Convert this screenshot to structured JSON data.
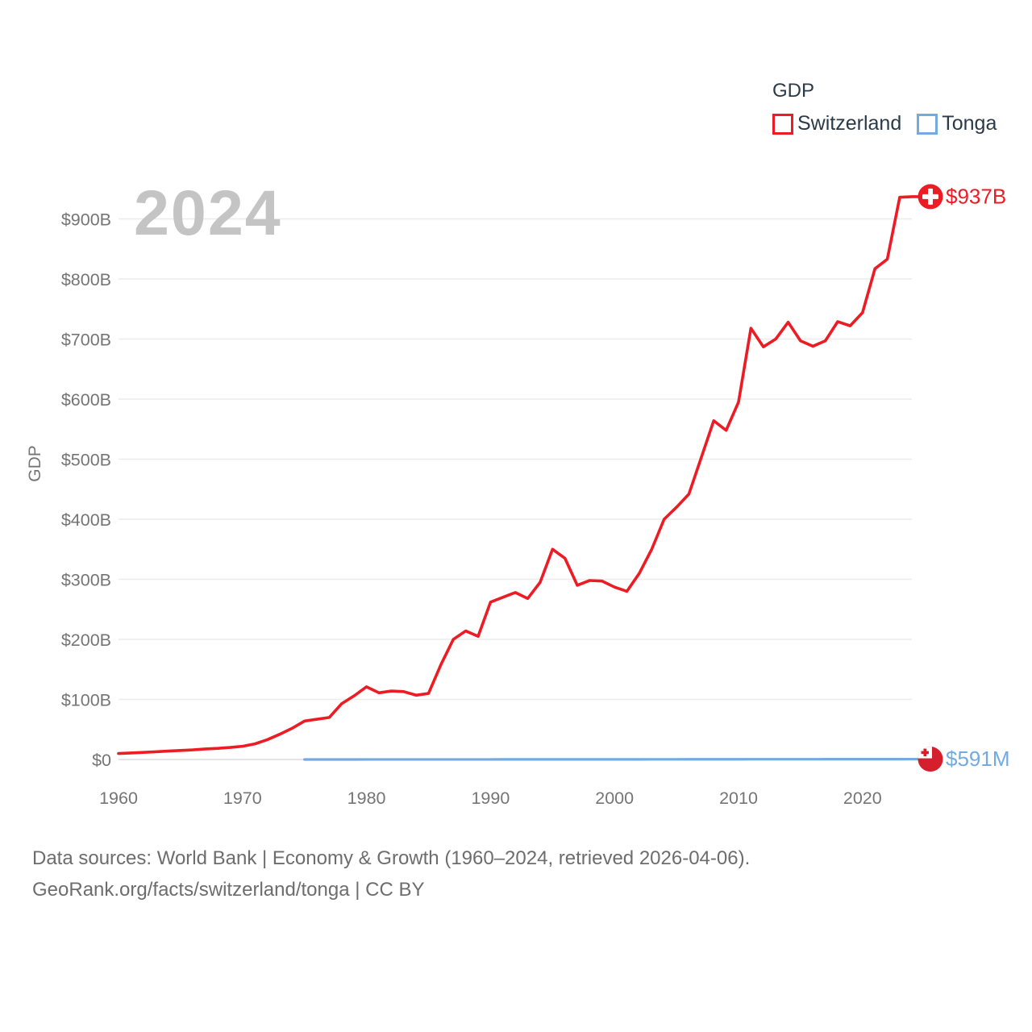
{
  "legend": {
    "title": "GDP",
    "items": [
      {
        "label": "Switzerland",
        "color": "#ed1c24"
      },
      {
        "label": "Tonga",
        "color": "#74aadf"
      }
    ]
  },
  "watermark": {
    "text": "2024"
  },
  "footer": {
    "line1": "Data sources: World Bank | Economy & Growth (1960–2024, retrieved 2026-04-06).",
    "line2": "GeoRank.org/facts/switzerland/tonga | CC BY"
  },
  "chart_data": {
    "type": "line",
    "title": "GDP",
    "ylabel": "GDP",
    "grid": "horizontal",
    "legend_position": "top-right",
    "x_axis": {
      "range": [
        1960,
        2024
      ],
      "ticks": [
        1960,
        1970,
        1980,
        1990,
        2000,
        2010,
        2020
      ]
    },
    "y_axis": {
      "range_billions": [
        0,
        950
      ],
      "ticks": [
        {
          "label": "$0",
          "billions": 0
        },
        {
          "label": "$100B",
          "billions": 100
        },
        {
          "label": "$200B",
          "billions": 200
        },
        {
          "label": "$300B",
          "billions": 300
        },
        {
          "label": "$400B",
          "billions": 400
        },
        {
          "label": "$500B",
          "billions": 500
        },
        {
          "label": "$600B",
          "billions": 600
        },
        {
          "label": "$700B",
          "billions": 700
        },
        {
          "label": "$800B",
          "billions": 800
        },
        {
          "label": "$900B",
          "billions": 900
        }
      ]
    },
    "series": [
      {
        "name": "Switzerland",
        "color": "#ed1c24",
        "unit": "current USD, billions",
        "start_year": 1960,
        "end_year": 2024,
        "end_label": "$937B",
        "end_marker": "switzerland-flag-dot",
        "marker_colors": {
          "background": "#ed1c24",
          "cross": "#ffffff"
        },
        "values_billions": [
          10,
          10.8,
          11.8,
          12.8,
          14,
          15,
          16,
          17.5,
          18.5,
          20,
          22,
          26,
          33,
          42,
          52,
          64,
          67,
          70,
          93,
          106,
          121,
          111,
          114,
          113,
          107,
          110,
          158,
          200,
          214,
          205,
          262,
          270,
          278,
          268,
          295,
          350,
          335,
          290,
          298,
          297,
          287,
          280,
          310,
          350,
          400,
          420,
          442,
          503,
          564,
          548,
          595,
          718,
          687,
          700,
          728,
          697,
          688,
          697,
          729,
          722,
          744,
          817,
          833,
          936,
          937
        ]
      },
      {
        "name": "Tonga",
        "color": "#74aadf",
        "unit": "current USD, millions",
        "start_year": 1975,
        "end_year": 2024,
        "end_label": "$591M",
        "end_marker": "tonga-flag-dot",
        "marker_colors": {
          "background": "#d61f2c",
          "canton": "#ffffff",
          "cross": "#d61f2c"
        },
        "values_millions": [
          25,
          28,
          32,
          39,
          47,
          56,
          63,
          66,
          67,
          65,
          65,
          76,
          88,
          101,
          103,
          113,
          122,
          130,
          137,
          158,
          180,
          191,
          186,
          174,
          175,
          189,
          186,
          196,
          224,
          250,
          282,
          302,
          327,
          357,
          336,
          369,
          420,
          450,
          440,
          436,
          435,
          442,
          458,
          478,
          488,
          491,
          469,
          488,
          543,
          591
        ]
      }
    ]
  }
}
